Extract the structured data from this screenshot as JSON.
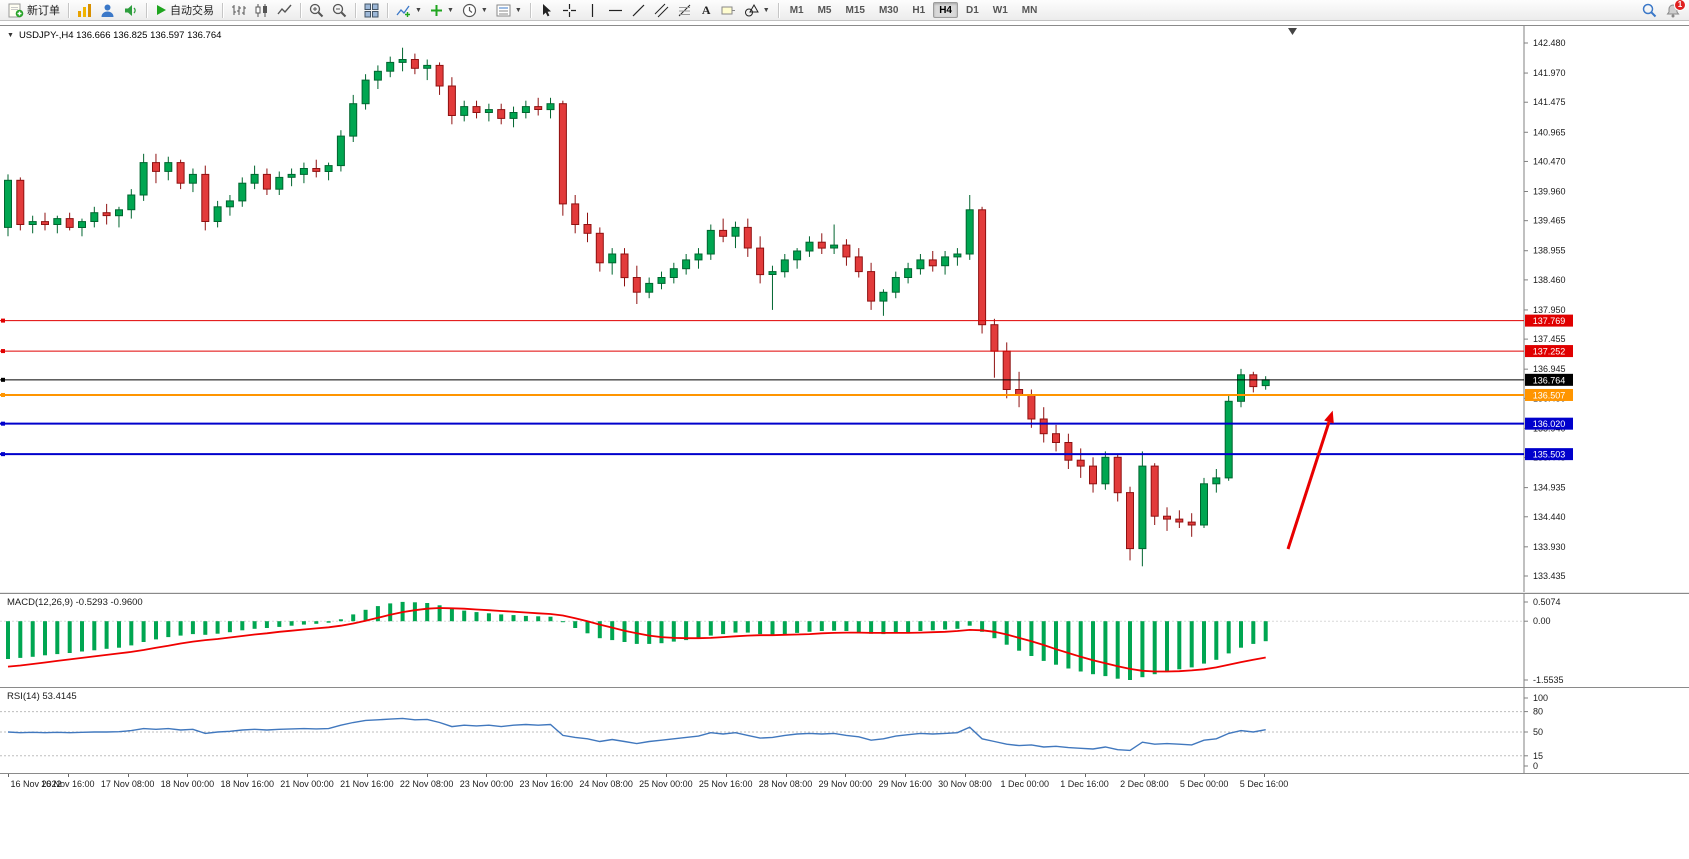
{
  "icons": {
    "collapse": "▼",
    "dropdown": "▼",
    "text_tool": "A"
  },
  "toolbar": {
    "new_order": "新订单",
    "auto_trading": "自动交易",
    "timeframes": [
      "M1",
      "M5",
      "M15",
      "M30",
      "H1",
      "H4",
      "D1",
      "W1",
      "MN"
    ],
    "active_timeframe": "H4",
    "notification_badge": "1"
  },
  "chart_header": {
    "title": "USDJPY-,H4 136.666 136.825 136.597 136.764"
  },
  "chart_data": [
    {
      "type": "candlestick",
      "symbol": "USDJPY-",
      "timeframe": "H4",
      "current": {
        "open": 136.666,
        "high": 136.825,
        "low": 136.597,
        "close": 136.764
      },
      "ylim": [
        133.435,
        142.48
      ],
      "y_ticks": [
        "142.480",
        "141.970",
        "141.475",
        "140.965",
        "140.470",
        "139.960",
        "139.465",
        "138.955",
        "138.460",
        "137.950",
        "137.455",
        "136.945",
        "136.450",
        "135.940",
        "135.445",
        "134.935",
        "134.440",
        "133.930",
        "133.435"
      ],
      "x_labels": [
        "16 Nov 2022",
        "16 Nov 16:00",
        "17 Nov 08:00",
        "18 Nov 00:00",
        "18 Nov 16:00",
        "21 Nov 00:00",
        "21 Nov 16:00",
        "22 Nov 08:00",
        "23 Nov 00:00",
        "23 Nov 16:00",
        "24 Nov 08:00",
        "25 Nov 00:00",
        "25 Nov 16:00",
        "28 Nov 08:00",
        "29 Nov 00:00",
        "29 Nov 16:00",
        "30 Nov 08:00",
        "1 Dec 00:00",
        "1 Dec 16:00",
        "2 Dec 08:00",
        "5 Dec 00:00",
        "5 Dec 16:00"
      ],
      "up_color": "#00a651",
      "up_stroke": "#00652f",
      "down_color": "#e23b3b",
      "down_stroke": "#8f1111",
      "candles": [
        [
          139.35,
          140.25,
          139.2,
          140.15
        ],
        [
          140.15,
          140.2,
          139.3,
          139.4
        ],
        [
          139.4,
          139.55,
          139.25,
          139.45
        ],
        [
          139.45,
          139.6,
          139.3,
          139.4
        ],
        [
          139.4,
          139.55,
          139.25,
          139.5
        ],
        [
          139.5,
          139.6,
          139.3,
          139.35
        ],
        [
          139.35,
          139.5,
          139.2,
          139.45
        ],
        [
          139.45,
          139.7,
          139.35,
          139.6
        ],
        [
          139.6,
          139.75,
          139.4,
          139.55
        ],
        [
          139.55,
          139.7,
          139.35,
          139.65
        ],
        [
          139.65,
          140.0,
          139.5,
          139.9
        ],
        [
          139.9,
          140.6,
          139.8,
          140.45
        ],
        [
          140.45,
          140.6,
          140.1,
          140.3
        ],
        [
          140.3,
          140.55,
          140.15,
          140.45
        ],
        [
          140.45,
          140.5,
          140.0,
          140.1
        ],
        [
          140.1,
          140.35,
          139.95,
          140.25
        ],
        [
          140.25,
          140.4,
          139.3,
          139.45
        ],
        [
          139.45,
          139.8,
          139.35,
          139.7
        ],
        [
          139.7,
          139.9,
          139.55,
          139.8
        ],
        [
          139.8,
          140.2,
          139.7,
          140.1
        ],
        [
          140.1,
          140.4,
          140.0,
          140.25
        ],
        [
          140.25,
          140.35,
          139.9,
          140.0
        ],
        [
          140.0,
          140.3,
          139.9,
          140.2
        ],
        [
          140.2,
          140.35,
          140.05,
          140.25
        ],
        [
          140.25,
          140.45,
          140.1,
          140.35
        ],
        [
          140.35,
          140.5,
          140.2,
          140.3
        ],
        [
          140.3,
          140.45,
          140.15,
          140.4
        ],
        [
          140.4,
          141.0,
          140.3,
          140.9
        ],
        [
          140.9,
          141.6,
          140.8,
          141.45
        ],
        [
          141.45,
          141.95,
          141.35,
          141.85
        ],
        [
          141.85,
          142.1,
          141.7,
          142.0
        ],
        [
          142.0,
          142.25,
          141.9,
          142.15
        ],
        [
          142.15,
          142.4,
          142.0,
          142.2
        ],
        [
          142.2,
          142.3,
          141.95,
          142.05
        ],
        [
          142.05,
          142.2,
          141.85,
          142.1
        ],
        [
          142.1,
          142.15,
          141.6,
          141.75
        ],
        [
          141.75,
          141.9,
          141.1,
          141.25
        ],
        [
          141.25,
          141.5,
          141.15,
          141.4
        ],
        [
          141.4,
          141.5,
          141.2,
          141.3
        ],
        [
          141.3,
          141.45,
          141.15,
          141.35
        ],
        [
          141.35,
          141.45,
          141.1,
          141.2
        ],
        [
          141.2,
          141.4,
          141.05,
          141.3
        ],
        [
          141.3,
          141.5,
          141.2,
          141.4
        ],
        [
          141.4,
          141.55,
          141.25,
          141.35
        ],
        [
          141.35,
          141.55,
          141.2,
          141.45
        ],
        [
          141.45,
          141.5,
          139.55,
          139.75
        ],
        [
          139.75,
          139.9,
          139.25,
          139.4
        ],
        [
          139.4,
          139.6,
          139.1,
          139.25
        ],
        [
          139.25,
          139.35,
          138.6,
          138.75
        ],
        [
          138.75,
          139.0,
          138.55,
          138.9
        ],
        [
          138.9,
          139.0,
          138.35,
          138.5
        ],
        [
          138.5,
          138.7,
          138.05,
          138.25
        ],
        [
          138.25,
          138.5,
          138.15,
          138.4
        ],
        [
          138.4,
          138.6,
          138.3,
          138.5
        ],
        [
          138.5,
          138.75,
          138.4,
          138.65
        ],
        [
          138.65,
          138.9,
          138.55,
          138.8
        ],
        [
          138.8,
          139.0,
          138.65,
          138.9
        ],
        [
          138.9,
          139.4,
          138.8,
          139.3
        ],
        [
          139.3,
          139.5,
          139.1,
          139.2
        ],
        [
          139.2,
          139.45,
          139.0,
          139.35
        ],
        [
          139.35,
          139.5,
          138.85,
          139.0
        ],
        [
          139.0,
          139.2,
          138.4,
          138.55
        ],
        [
          138.55,
          138.7,
          137.95,
          138.6
        ],
        [
          138.6,
          138.9,
          138.5,
          138.8
        ],
        [
          138.8,
          139.0,
          138.65,
          138.95
        ],
        [
          138.95,
          139.2,
          138.85,
          139.1
        ],
        [
          139.1,
          139.25,
          138.9,
          139.0
        ],
        [
          139.0,
          139.4,
          138.9,
          139.05
        ],
        [
          139.05,
          139.15,
          138.7,
          138.85
        ],
        [
          138.85,
          139.0,
          138.5,
          138.6
        ],
        [
          138.6,
          138.75,
          137.95,
          138.1
        ],
        [
          138.1,
          138.3,
          137.85,
          138.25
        ],
        [
          138.25,
          138.6,
          138.15,
          138.5
        ],
        [
          138.5,
          138.75,
          138.4,
          138.65
        ],
        [
          138.65,
          138.9,
          138.55,
          138.8
        ],
        [
          138.8,
          138.95,
          138.6,
          138.7
        ],
        [
          138.7,
          138.95,
          138.55,
          138.85
        ],
        [
          138.85,
          139.0,
          138.7,
          138.9
        ],
        [
          138.9,
          139.9,
          138.8,
          139.65
        ],
        [
          139.65,
          139.7,
          137.55,
          137.7
        ],
        [
          137.7,
          137.8,
          136.8,
          137.25
        ],
        [
          137.25,
          137.4,
          136.45,
          136.6
        ],
        [
          136.6,
          136.9,
          136.3,
          136.5
        ],
        [
          136.5,
          136.6,
          135.95,
          136.1
        ],
        [
          136.1,
          136.3,
          135.7,
          135.85
        ],
        [
          135.85,
          136.0,
          135.55,
          135.7
        ],
        [
          135.7,
          135.85,
          135.25,
          135.4
        ],
        [
          135.4,
          135.6,
          135.1,
          135.3
        ],
        [
          135.3,
          135.45,
          134.85,
          135.0
        ],
        [
          135.0,
          135.55,
          134.9,
          135.45
        ],
        [
          135.45,
          135.5,
          134.7,
          134.85
        ],
        [
          134.85,
          134.95,
          133.7,
          133.9
        ],
        [
          133.9,
          135.55,
          133.6,
          135.3
        ],
        [
          135.3,
          135.35,
          134.3,
          134.45
        ],
        [
          134.45,
          134.6,
          134.2,
          134.4
        ],
        [
          134.4,
          134.55,
          134.25,
          134.35
        ],
        [
          134.35,
          134.5,
          134.1,
          134.3
        ],
        [
          134.3,
          135.1,
          134.25,
          135.0
        ],
        [
          135.0,
          135.25,
          134.85,
          135.1
        ],
        [
          135.1,
          136.5,
          135.05,
          136.4
        ],
        [
          136.4,
          136.95,
          136.3,
          136.85
        ],
        [
          136.85,
          136.9,
          136.55,
          136.65
        ],
        [
          136.666,
          136.825,
          136.597,
          136.764
        ]
      ],
      "hlines": [
        {
          "price": 137.769,
          "label": "137.769",
          "color": "#e00000",
          "width": 1
        },
        {
          "price": 137.252,
          "label": "137.252",
          "color": "#e00000",
          "width": 1
        },
        {
          "price": 136.764,
          "label": "136.764",
          "color": "#000000",
          "width": 1
        },
        {
          "price": 136.507,
          "label": "136.507",
          "color": "#ff9500",
          "width": 2
        },
        {
          "price": 136.02,
          "label": "136.020",
          "color": "#0000cc",
          "width": 2
        },
        {
          "price": 135.503,
          "label": "135.503",
          "color": "#0000cc",
          "width": 2
        }
      ],
      "annotation": {
        "type": "arrow",
        "color": "#e80000",
        "direction": "up-right"
      }
    },
    {
      "type": "bar",
      "name": "MACD",
      "label": "MACD(12,26,9) -0.5293 -0.9600",
      "macd_value": -0.5293,
      "signal_value": -0.96,
      "ylim": [
        -1.5535,
        0.5074
      ],
      "y_ticks": [
        "0.5074",
        "0.00",
        "-1.5535"
      ],
      "histogram_color": "#00a651",
      "signal_color": "#f00000",
      "histogram": [
        -1.0,
        -0.97,
        -0.94,
        -0.9,
        -0.87,
        -0.84,
        -0.8,
        -0.77,
        -0.73,
        -0.7,
        -0.64,
        -0.55,
        -0.48,
        -0.42,
        -0.38,
        -0.34,
        -0.36,
        -0.33,
        -0.29,
        -0.24,
        -0.2,
        -0.18,
        -0.15,
        -0.12,
        -0.09,
        -0.07,
        -0.04,
        0.05,
        0.18,
        0.3,
        0.4,
        0.47,
        0.51,
        0.5,
        0.48,
        0.42,
        0.33,
        0.28,
        0.24,
        0.21,
        0.18,
        0.16,
        0.14,
        0.13,
        0.12,
        -0.02,
        -0.18,
        -0.32,
        -0.45,
        -0.5,
        -0.55,
        -0.6,
        -0.6,
        -0.58,
        -0.54,
        -0.5,
        -0.45,
        -0.38,
        -0.34,
        -0.3,
        -0.3,
        -0.34,
        -0.36,
        -0.34,
        -0.31,
        -0.28,
        -0.26,
        -0.25,
        -0.26,
        -0.29,
        -0.33,
        -0.34,
        -0.32,
        -0.29,
        -0.26,
        -0.24,
        -0.22,
        -0.2,
        -0.12,
        -0.28,
        -0.45,
        -0.62,
        -0.78,
        -0.92,
        -1.05,
        -1.15,
        -1.25,
        -1.33,
        -1.4,
        -1.45,
        -1.52,
        -1.5535,
        -1.48,
        -1.4,
        -1.33,
        -1.27,
        -1.22,
        -1.12,
        -1.02,
        -0.85,
        -0.7,
        -0.6,
        -0.5293
      ],
      "signal": [
        -1.2,
        -1.17,
        -1.13,
        -1.09,
        -1.05,
        -1.01,
        -0.97,
        -0.93,
        -0.89,
        -0.85,
        -0.81,
        -0.76,
        -0.7,
        -0.65,
        -0.59,
        -0.54,
        -0.5,
        -0.47,
        -0.43,
        -0.39,
        -0.35,
        -0.32,
        -0.28,
        -0.25,
        -0.22,
        -0.19,
        -0.16,
        -0.12,
        -0.06,
        0.01,
        0.09,
        0.17,
        0.24,
        0.29,
        0.33,
        0.35,
        0.34,
        0.33,
        0.31,
        0.29,
        0.27,
        0.25,
        0.23,
        0.21,
        0.19,
        0.15,
        0.08,
        0.0,
        -0.09,
        -0.17,
        -0.25,
        -0.32,
        -0.38,
        -0.42,
        -0.44,
        -0.45,
        -0.45,
        -0.44,
        -0.42,
        -0.4,
        -0.38,
        -0.37,
        -0.37,
        -0.36,
        -0.35,
        -0.34,
        -0.32,
        -0.31,
        -0.3,
        -0.3,
        -0.31,
        -0.31,
        -0.31,
        -0.31,
        -0.3,
        -0.29,
        -0.28,
        -0.26,
        -0.23,
        -0.24,
        -0.28,
        -0.35,
        -0.44,
        -0.53,
        -0.63,
        -0.74,
        -0.84,
        -0.94,
        -1.03,
        -1.11,
        -1.19,
        -1.26,
        -1.31,
        -1.33,
        -1.33,
        -1.32,
        -1.3,
        -1.27,
        -1.22,
        -1.15,
        -1.08,
        -1.02,
        -0.96
      ]
    },
    {
      "type": "line",
      "name": "RSI",
      "label": "RSI(14) 53.4145",
      "value": 53.4145,
      "ylim": [
        0,
        100
      ],
      "levels": [
        80,
        50,
        15
      ],
      "y_ticks": [
        "100",
        "80",
        "50",
        "15",
        "0"
      ],
      "line_color": "#4178be",
      "values": [
        50,
        49,
        49.5,
        49,
        49.5,
        49,
        49.5,
        50,
        50,
        50.5,
        52,
        55,
        54,
        55,
        53,
        54,
        48,
        50,
        51,
        53,
        54,
        53,
        54,
        54.5,
        55,
        54.5,
        55,
        60,
        64,
        67,
        68,
        69,
        70,
        68,
        68.5,
        64,
        58,
        60,
        59,
        60,
        58,
        60,
        61,
        60,
        61,
        45,
        42,
        40,
        36,
        39,
        36,
        33,
        36,
        38,
        40,
        42,
        44,
        49,
        47,
        49,
        45,
        41,
        42,
        45,
        47,
        48,
        47,
        48,
        45,
        43,
        38,
        40,
        44,
        46,
        48,
        47,
        48,
        49,
        57,
        40,
        36,
        32,
        30,
        31,
        28,
        29,
        27,
        26,
        25,
        28,
        24,
        23,
        35,
        32,
        33,
        32,
        31,
        38,
        40,
        48,
        52,
        50,
        53.41
      ]
    }
  ]
}
